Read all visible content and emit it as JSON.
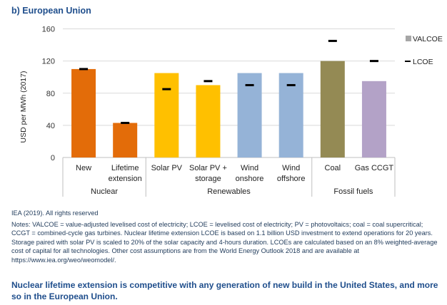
{
  "chart_data": {
    "type": "bar",
    "title": "b) European Union",
    "xlabel": "",
    "ylabel": "USD per MWh (2017)",
    "ylim": [
      0,
      160
    ],
    "yticks": [
      0,
      40,
      80,
      120,
      160
    ],
    "grid": true,
    "legend_position": "right",
    "categories": [
      {
        "label": [
          "New"
        ],
        "group": "Nuclear",
        "color": "#e36c09"
      },
      {
        "label": [
          "Lifetime",
          "extension"
        ],
        "group": "Nuclear",
        "color": "#e36c09"
      },
      {
        "label": [
          "Solar PV"
        ],
        "group": "Renewables",
        "color": "#ffc000"
      },
      {
        "label": [
          "Solar PV +",
          "storage"
        ],
        "group": "Renewables",
        "color": "#ffc000"
      },
      {
        "label": [
          "Wind",
          "onshore"
        ],
        "group": "Renewables",
        "color": "#95b3d7"
      },
      {
        "label": [
          "Wind",
          "offshore"
        ],
        "group": "Renewables",
        "color": "#95b3d7"
      },
      {
        "label": [
          "Coal"
        ],
        "group": "Fossil fuels",
        "color": "#948a54"
      },
      {
        "label": [
          "Gas CCGT"
        ],
        "group": "Fossil fuels",
        "color": "#b3a2c7"
      }
    ],
    "groups": [
      {
        "name": "Nuclear",
        "count": 2
      },
      {
        "name": "Renewables",
        "count": 4
      },
      {
        "name": "Fossil fuels",
        "count": 2
      }
    ],
    "series": [
      {
        "name": "VALCOE",
        "kind": "bar",
        "values": [
          110,
          43,
          105,
          90,
          105,
          105,
          120,
          95
        ]
      },
      {
        "name": "LCOE",
        "kind": "marker",
        "values": [
          110,
          43,
          85,
          95,
          90,
          90,
          145,
          120
        ]
      }
    ],
    "legend": [
      {
        "label": "VALCOE",
        "swatch": "#a6a6a6"
      },
      {
        "label": "LCOE",
        "swatch": "#000000"
      }
    ]
  },
  "source": "IEA (2019). All rights reserved",
  "notes": "Notes: VALCOE = value-adjusted levelised cost of electricity; LCOE = levelised cost of electricity; PV = photovoltaics; coal = coal supercritical; CCGT = combined-cycle gas turbines. Nuclear lifetime extension LCOE is based on 1.1 billion USD investment to extend operations for 20 years. Storage paired with solar PV is scaled to 20% of the solar capacity and 4-hours duration. LCOEs are calculated based on an 8% weighted-average cost of capital for all technologies. Other cost assumptions are from the World Energy Outlook 2018 and are available at https://www.iea.org/weo/weomodel/.",
  "caption": "Nuclear lifetime extension is competitive with any generation of new build in the United States, and more so in the European Union."
}
